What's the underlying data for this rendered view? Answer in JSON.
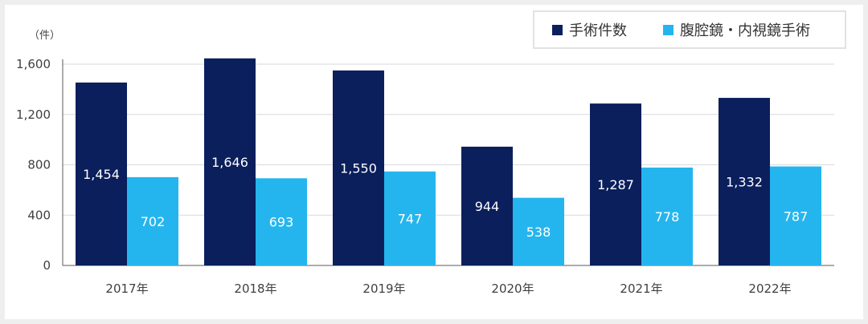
{
  "colors": {
    "series1": "#0a1f5c",
    "series2": "#25b5ee",
    "bar_label": "#ffffff",
    "axis_text": "#404040",
    "grid": "#d9d9d9"
  },
  "chart_data": {
    "type": "bar",
    "unit_label": "（件）",
    "categories": [
      "2017年",
      "2018年",
      "2019年",
      "2020年",
      "2021年",
      "2022年"
    ],
    "series": [
      {
        "name": "手術件数",
        "values": [
          1454,
          1646,
          1550,
          944,
          1287,
          1332
        ],
        "value_labels": [
          "1,454",
          "1,646",
          "1,550",
          "944",
          "1,287",
          "1,332"
        ]
      },
      {
        "name": "腹腔鏡・内視鏡手術",
        "values": [
          702,
          693,
          747,
          538,
          778,
          787
        ],
        "value_labels": [
          "702",
          "693",
          "747",
          "538",
          "778",
          "787"
        ]
      }
    ],
    "ylim": [
      0,
      1600
    ],
    "yticks": [
      0,
      400,
      800,
      1200,
      1600
    ],
    "ytick_labels": [
      "0",
      "400",
      "800",
      "1,200",
      "1,600"
    ],
    "grid": true,
    "legend_position": "top-right"
  }
}
